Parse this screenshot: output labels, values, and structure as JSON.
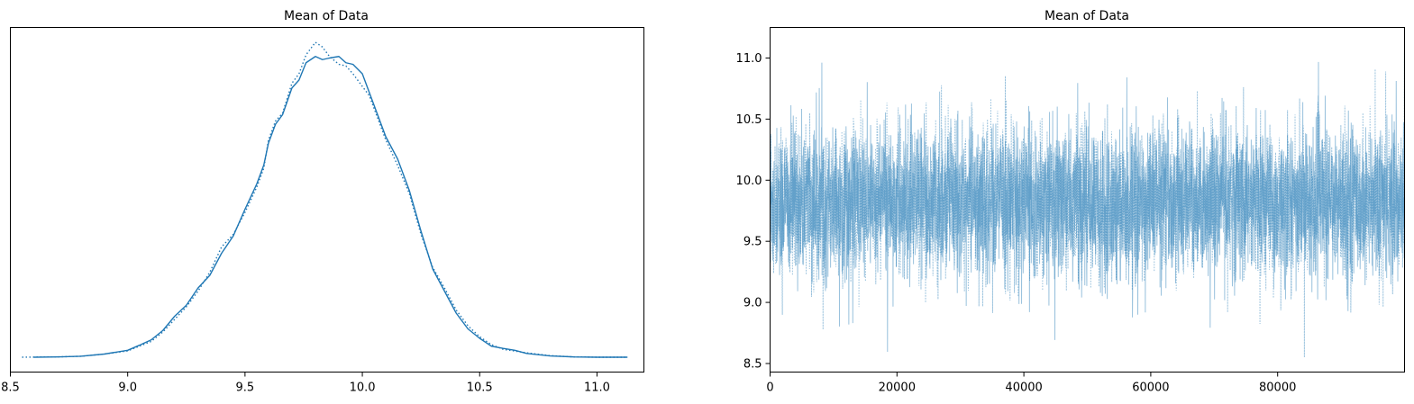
{
  "chart_data": [
    {
      "type": "line",
      "title": "Mean of Data",
      "xlabel": "",
      "ylabel": "",
      "xlim": [
        8.5,
        11.2
      ],
      "x_ticks": [
        "8.5",
        "9.0",
        "9.5",
        "10.0",
        "10.5",
        "11.0"
      ],
      "y_ticks": [],
      "series": [
        {
          "style": "solid",
          "color": "#1f77b4",
          "x": [
            8.6,
            8.7,
            8.8,
            8.9,
            9.0,
            9.05,
            9.1,
            9.15,
            9.2,
            9.25,
            9.3,
            9.35,
            9.4,
            9.45,
            9.5,
            9.55,
            9.58,
            9.6,
            9.63,
            9.66,
            9.7,
            9.73,
            9.76,
            9.8,
            9.83,
            9.86,
            9.9,
            9.93,
            9.96,
            10.0,
            10.05,
            10.1,
            10.15,
            10.2,
            10.25,
            10.3,
            10.35,
            10.4,
            10.45,
            10.5,
            10.55,
            10.6,
            10.65,
            10.7,
            10.8,
            10.9,
            11.0,
            11.13
          ],
          "y": [
            0.0,
            0.001,
            0.003,
            0.01,
            0.022,
            0.038,
            0.055,
            0.085,
            0.13,
            0.165,
            0.22,
            0.26,
            0.33,
            0.385,
            0.47,
            0.55,
            0.61,
            0.68,
            0.74,
            0.77,
            0.855,
            0.88,
            0.935,
            0.955,
            0.945,
            0.95,
            0.955,
            0.935,
            0.93,
            0.9,
            0.8,
            0.7,
            0.63,
            0.53,
            0.4,
            0.28,
            0.21,
            0.14,
            0.09,
            0.06,
            0.035,
            0.028,
            0.022,
            0.012,
            0.004,
            0.001,
            0.0,
            0.0
          ]
        },
        {
          "style": "dotted",
          "color": "#1f77b4",
          "x": [
            8.55,
            8.7,
            8.8,
            8.9,
            9.0,
            9.05,
            9.1,
            9.15,
            9.2,
            9.25,
            9.3,
            9.35,
            9.4,
            9.45,
            9.5,
            9.55,
            9.58,
            9.6,
            9.63,
            9.66,
            9.7,
            9.73,
            9.76,
            9.8,
            9.83,
            9.86,
            9.9,
            9.93,
            9.96,
            10.0,
            10.03,
            10.06,
            10.1,
            10.15,
            10.2,
            10.25,
            10.3,
            10.35,
            10.4,
            10.45,
            10.5,
            10.55,
            10.6,
            10.7,
            10.8,
            10.9,
            11.0,
            11.13
          ],
          "y": [
            0.0,
            0.001,
            0.003,
            0.01,
            0.02,
            0.035,
            0.05,
            0.08,
            0.12,
            0.16,
            0.21,
            0.27,
            0.35,
            0.39,
            0.46,
            0.54,
            0.6,
            0.69,
            0.75,
            0.775,
            0.87,
            0.9,
            0.96,
            1.0,
            0.985,
            0.955,
            0.93,
            0.925,
            0.9,
            0.86,
            0.83,
            0.77,
            0.69,
            0.61,
            0.52,
            0.39,
            0.285,
            0.22,
            0.15,
            0.1,
            0.065,
            0.04,
            0.025,
            0.014,
            0.005,
            0.001,
            0.0,
            0.0
          ]
        }
      ]
    },
    {
      "type": "line",
      "title": "Mean of Data",
      "xlabel": "",
      "ylabel": "",
      "xlim": [
        0,
        99999
      ],
      "ylim": [
        8.43,
        11.25
      ],
      "x_ticks": [
        "0",
        "20000",
        "40000",
        "60000",
        "80000"
      ],
      "y_ticks": [
        "8.5",
        "9.0",
        "9.5",
        "10.0",
        "10.5",
        "11.0"
      ],
      "series": [
        {
          "style": "solid",
          "color": "#1f77b4",
          "alpha": 0.45,
          "description_center": 9.82,
          "spread_sd": 0.3,
          "n_samples": 100000
        },
        {
          "style": "dotted",
          "color": "#1f77b4",
          "alpha": 0.45,
          "description_center": 9.82,
          "spread_sd": 0.3,
          "n_samples": 100000
        }
      ]
    }
  ]
}
